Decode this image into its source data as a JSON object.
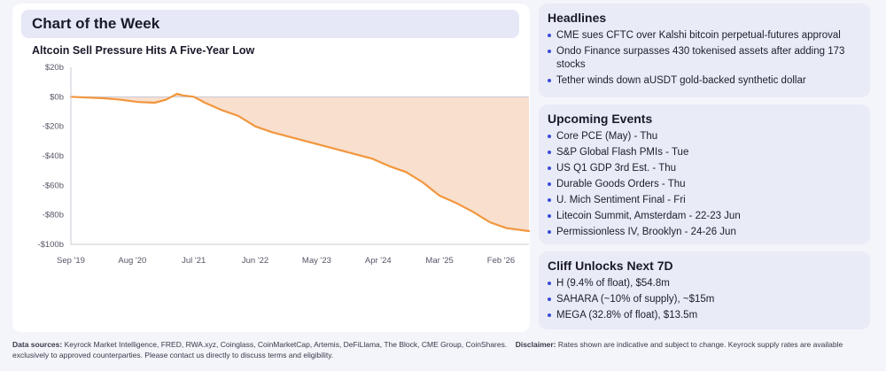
{
  "chart_panel": {
    "header": "Chart of the Week"
  },
  "chart_data": {
    "type": "area",
    "title": "Altcoin Sell Pressure Hits A Five-Year Low",
    "ylim": [
      -100,
      20
    ],
    "yticks": [
      20,
      0,
      -20,
      -40,
      -60,
      -80,
      -100
    ],
    "ytick_labels": [
      "$20b",
      "$0b",
      "-$20b",
      "-$40b",
      "-$60b",
      "-$80b",
      "-$100b"
    ],
    "xlim": [
      "2019-09",
      "2026-07"
    ],
    "xticks": [
      "2019-09",
      "2020-08",
      "2021-07",
      "2022-06",
      "2023-05",
      "2024-04",
      "2025-03",
      "2026-02"
    ],
    "xtick_labels": [
      "Sep '19",
      "Aug '20",
      "Jul '21",
      "Jun '22",
      "May '23",
      "Apr '24",
      "Mar '25",
      "Feb '26"
    ],
    "grid": false,
    "x": [
      "2019-09",
      "2019-12",
      "2020-03",
      "2020-06",
      "2020-09",
      "2020-12",
      "2021-02",
      "2021-04",
      "2021-05",
      "2021-07",
      "2021-09",
      "2021-12",
      "2022-03",
      "2022-06",
      "2022-09",
      "2022-12",
      "2023-03",
      "2023-06",
      "2023-09",
      "2023-12",
      "2024-03",
      "2024-06",
      "2024-09",
      "2024-12",
      "2025-03",
      "2025-06",
      "2025-09",
      "2025-12",
      "2026-03",
      "2026-07"
    ],
    "values": [
      0,
      -0.5,
      -1,
      -2,
      -3.5,
      -4,
      -2,
      2,
      1,
      0,
      -4,
      -9,
      -13,
      -20,
      -24,
      -27,
      -30,
      -33,
      -36,
      -39,
      -42,
      -47,
      -51,
      -58,
      -67,
      -72,
      -78,
      -85,
      -89,
      -91
    ],
    "colors": {
      "line": "#f2963d",
      "fill": "#f6d4bd"
    }
  },
  "headlines": {
    "title": "Headlines",
    "items": [
      "CME sues CFTC over Kalshi bitcoin perpetual-futures approval",
      "Ondo Finance surpasses 430 tokenised assets after adding 173 stocks",
      "Tether winds down aUSDT gold-backed synthetic dollar"
    ]
  },
  "events": {
    "title": "Upcoming Events",
    "items": [
      "Core PCE (May) - Thu",
      "S&P Global Flash PMIs - Tue",
      "US Q1 GDP 3rd Est. - Thu",
      "Durable Goods Orders - Thu",
      "U. Mich Sentiment Final - Fri",
      "Litecoin Summit, Amsterdam - 22-23 Jun",
      "Permissionless IV, Brooklyn - 24-26 Jun"
    ]
  },
  "unlocks": {
    "title": "Cliff Unlocks Next 7D",
    "items": [
      "H (9.4% of float), $54.8m",
      "SAHARA (~10% of supply), ~$15m",
      "MEGA (32.8% of float), $13.5m"
    ]
  },
  "footer": {
    "sources_label": "Data sources:",
    "sources_text": "Keyrock Market Intelligence, FRED, RWA.xyz, Coinglass, CoinMarketCap, Artemis, DeFiLlama, The Block, CME Group, CoinShares.",
    "disclaimer_label": "Disclaimer:",
    "disclaimer_text": "Rates shown are indicative and subject to change. Keyrock supply rates are available exclusively to approved counterparties. Please contact us directly to discuss terms and eligibility."
  }
}
